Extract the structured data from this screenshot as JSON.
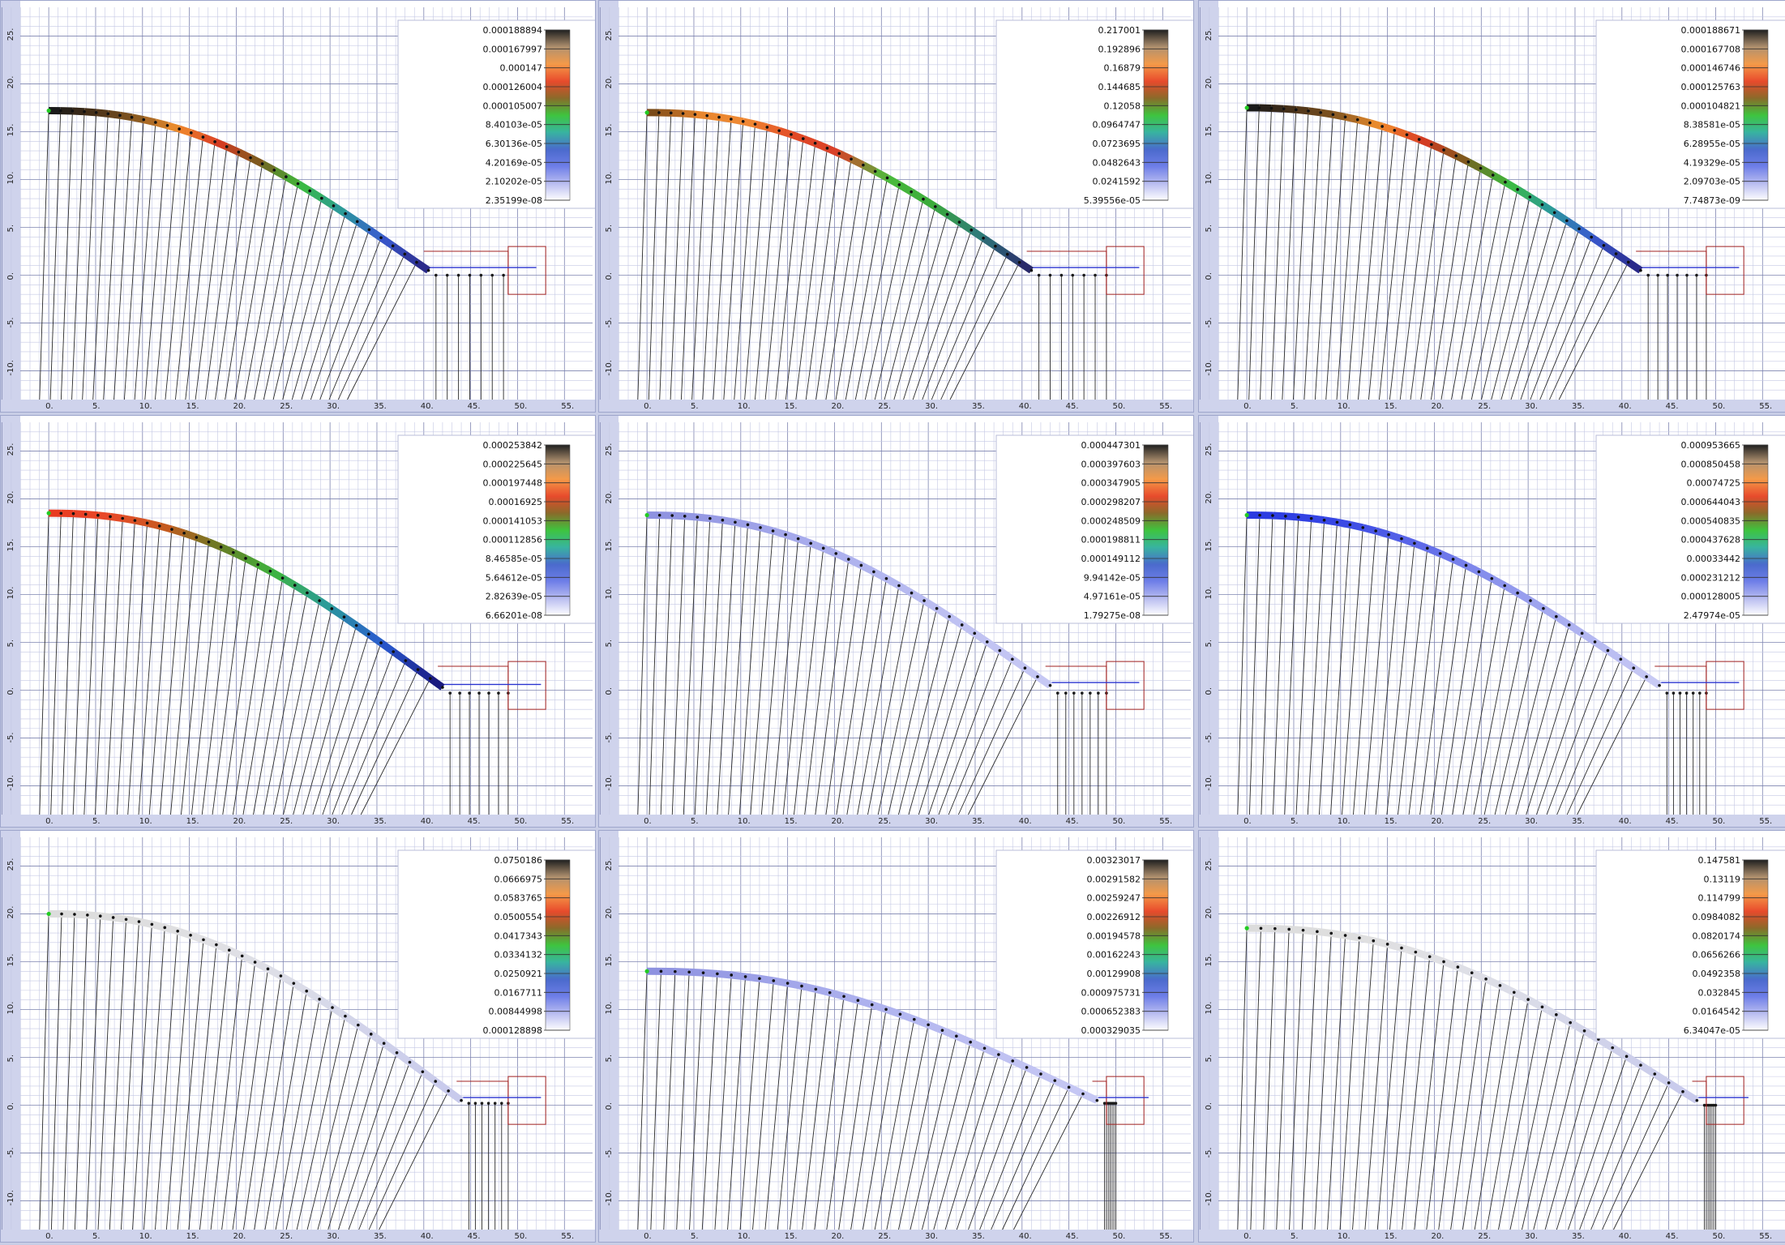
{
  "axes": {
    "x_ticks": [
      "0.",
      "5.",
      "10.",
      "15.",
      "20.",
      "25.",
      "30.",
      "35.",
      "40.",
      "45.",
      "50.",
      "55."
    ],
    "y_ticks": [
      "25.",
      "20.",
      "15.",
      "10.",
      "5.",
      "0.",
      "-5.",
      "-10."
    ],
    "xlim": [
      -2,
      58
    ],
    "ylim": [
      -13,
      28
    ]
  },
  "colorbar": [
    "#202020",
    "#b29270",
    "#f59a48",
    "#e84a2c",
    "#8a6a2a",
    "#3ec43e",
    "#38b4a0",
    "#4a6acc",
    "#6e7ee8",
    "#b8bcf0",
    "#ffffff"
  ],
  "chart_data": [
    {
      "type": "heatmap",
      "legend": "top-right",
      "grid": true,
      "colorbar_labels": [
        "0.000188894",
        "0.000167997",
        "0.000147",
        "0.000126004",
        "0.000105007",
        "8.40103e-05",
        "6.30136e-05",
        "4.20169e-05",
        "2.10202e-05",
        "2.35199e-08"
      ],
      "curve": {
        "start": [
          0,
          17.2
        ],
        "end": [
          40.5,
          0.5
        ],
        "coloring": "rainbow",
        "tail_end": 48.5,
        "tail_y": 0.0
      }
    },
    {
      "type": "heatmap",
      "legend": "top-right",
      "grid": true,
      "colorbar_labels": [
        "0.217001",
        "0.192896",
        "0.16879",
        "0.144685",
        "0.12058",
        "0.0964747",
        "0.0723695",
        "0.0482643",
        "0.0241592",
        "5.39556e-05"
      ],
      "curve": {
        "start": [
          0,
          17.0
        ],
        "end": [
          41,
          0.5
        ],
        "coloring": "orange",
        "tail_end": 49,
        "tail_y": 0.0
      }
    },
    {
      "type": "heatmap",
      "legend": "top-right",
      "grid": true,
      "colorbar_labels": [
        "0.000188671",
        "0.000167708",
        "0.000146746",
        "0.000125763",
        "0.000104821",
        "8.38581e-05",
        "6.28955e-05",
        "4.19329e-05",
        "2.09703e-05",
        "7.74873e-09"
      ],
      "curve": {
        "start": [
          0,
          17.5
        ],
        "end": [
          42,
          0.5
        ],
        "coloring": "rainbow",
        "tail_end": 49,
        "tail_y": 0.0
      }
    },
    {
      "type": "heatmap",
      "legend": "top-right",
      "grid": true,
      "colorbar_labels": [
        "0.000253842",
        "0.000225645",
        "0.000197448",
        "0.00016925",
        "0.000141053",
        "0.000112856",
        "8.46585e-05",
        "5.64612e-05",
        "2.82639e-05",
        "6.66201e-08"
      ],
      "curve": {
        "start": [
          0,
          18.5
        ],
        "end": [
          42,
          0.3
        ],
        "coloring": "rainbow2",
        "tail_end": 49,
        "tail_y": -0.3
      }
    },
    {
      "type": "heatmap",
      "legend": "top-right",
      "grid": true,
      "colorbar_labels": [
        "0.000447301",
        "0.000397603",
        "0.000347905",
        "0.000298207",
        "0.000248509",
        "0.000198811",
        "0.000149112",
        "9.94142e-05",
        "4.97161e-05",
        "1.79275e-08"
      ],
      "curve": {
        "start": [
          0,
          18.3
        ],
        "end": [
          43,
          0.5
        ],
        "coloring": "lavender",
        "tail_end": 49,
        "tail_y": -0.3
      }
    },
    {
      "type": "heatmap",
      "legend": "top-right",
      "grid": true,
      "colorbar_labels": [
        "0.000953665",
        "0.000850458",
        "0.00074725",
        "0.000644043",
        "0.000540835",
        "0.000437628",
        "0.00033442",
        "0.000231212",
        "0.000128005",
        "2.47974e-05"
      ],
      "curve": {
        "start": [
          0,
          18.3
        ],
        "end": [
          44,
          0.5
        ],
        "coloring": "blue",
        "tail_end": 49,
        "tail_y": -0.3
      }
    },
    {
      "type": "heatmap",
      "legend": "top-right",
      "grid": true,
      "colorbar_labels": [
        "0.0750186",
        "0.0666975",
        "0.0583765",
        "0.0500554",
        "0.0417343",
        "0.0334132",
        "0.0250921",
        "0.0167711",
        "0.00844998",
        "0.000128898"
      ],
      "curve": {
        "start": [
          0,
          20.0
        ],
        "end": [
          44,
          0.5
        ],
        "coloring": "white",
        "tail_end": 49,
        "tail_y": 0.2
      }
    },
    {
      "type": "heatmap",
      "legend": "top-right",
      "grid": true,
      "colorbar_labels": [
        "0.00323017",
        "0.00291582",
        "0.00259247",
        "0.00226912",
        "0.00194578",
        "0.00162243",
        "0.00129908",
        "0.000975731",
        "0.000652383",
        "0.000329035"
      ],
      "curve": {
        "start": [
          0,
          14.0
        ],
        "end": [
          48,
          0.5
        ],
        "coloring": "lavender",
        "tail_end": 50,
        "tail_y": 0.2
      }
    },
    {
      "type": "heatmap",
      "legend": "top-right",
      "grid": true,
      "colorbar_labels": [
        "0.147581",
        "0.13119",
        "0.114799",
        "0.0984082",
        "0.0820174",
        "0.0656266",
        "0.0492358",
        "0.032845",
        "0.0164542",
        "6.34047e-05"
      ],
      "curve": {
        "start": [
          0,
          18.5
        ],
        "end": [
          48,
          0.5
        ],
        "coloring": "white",
        "tail_end": 50,
        "tail_y": 0.0
      }
    }
  ]
}
